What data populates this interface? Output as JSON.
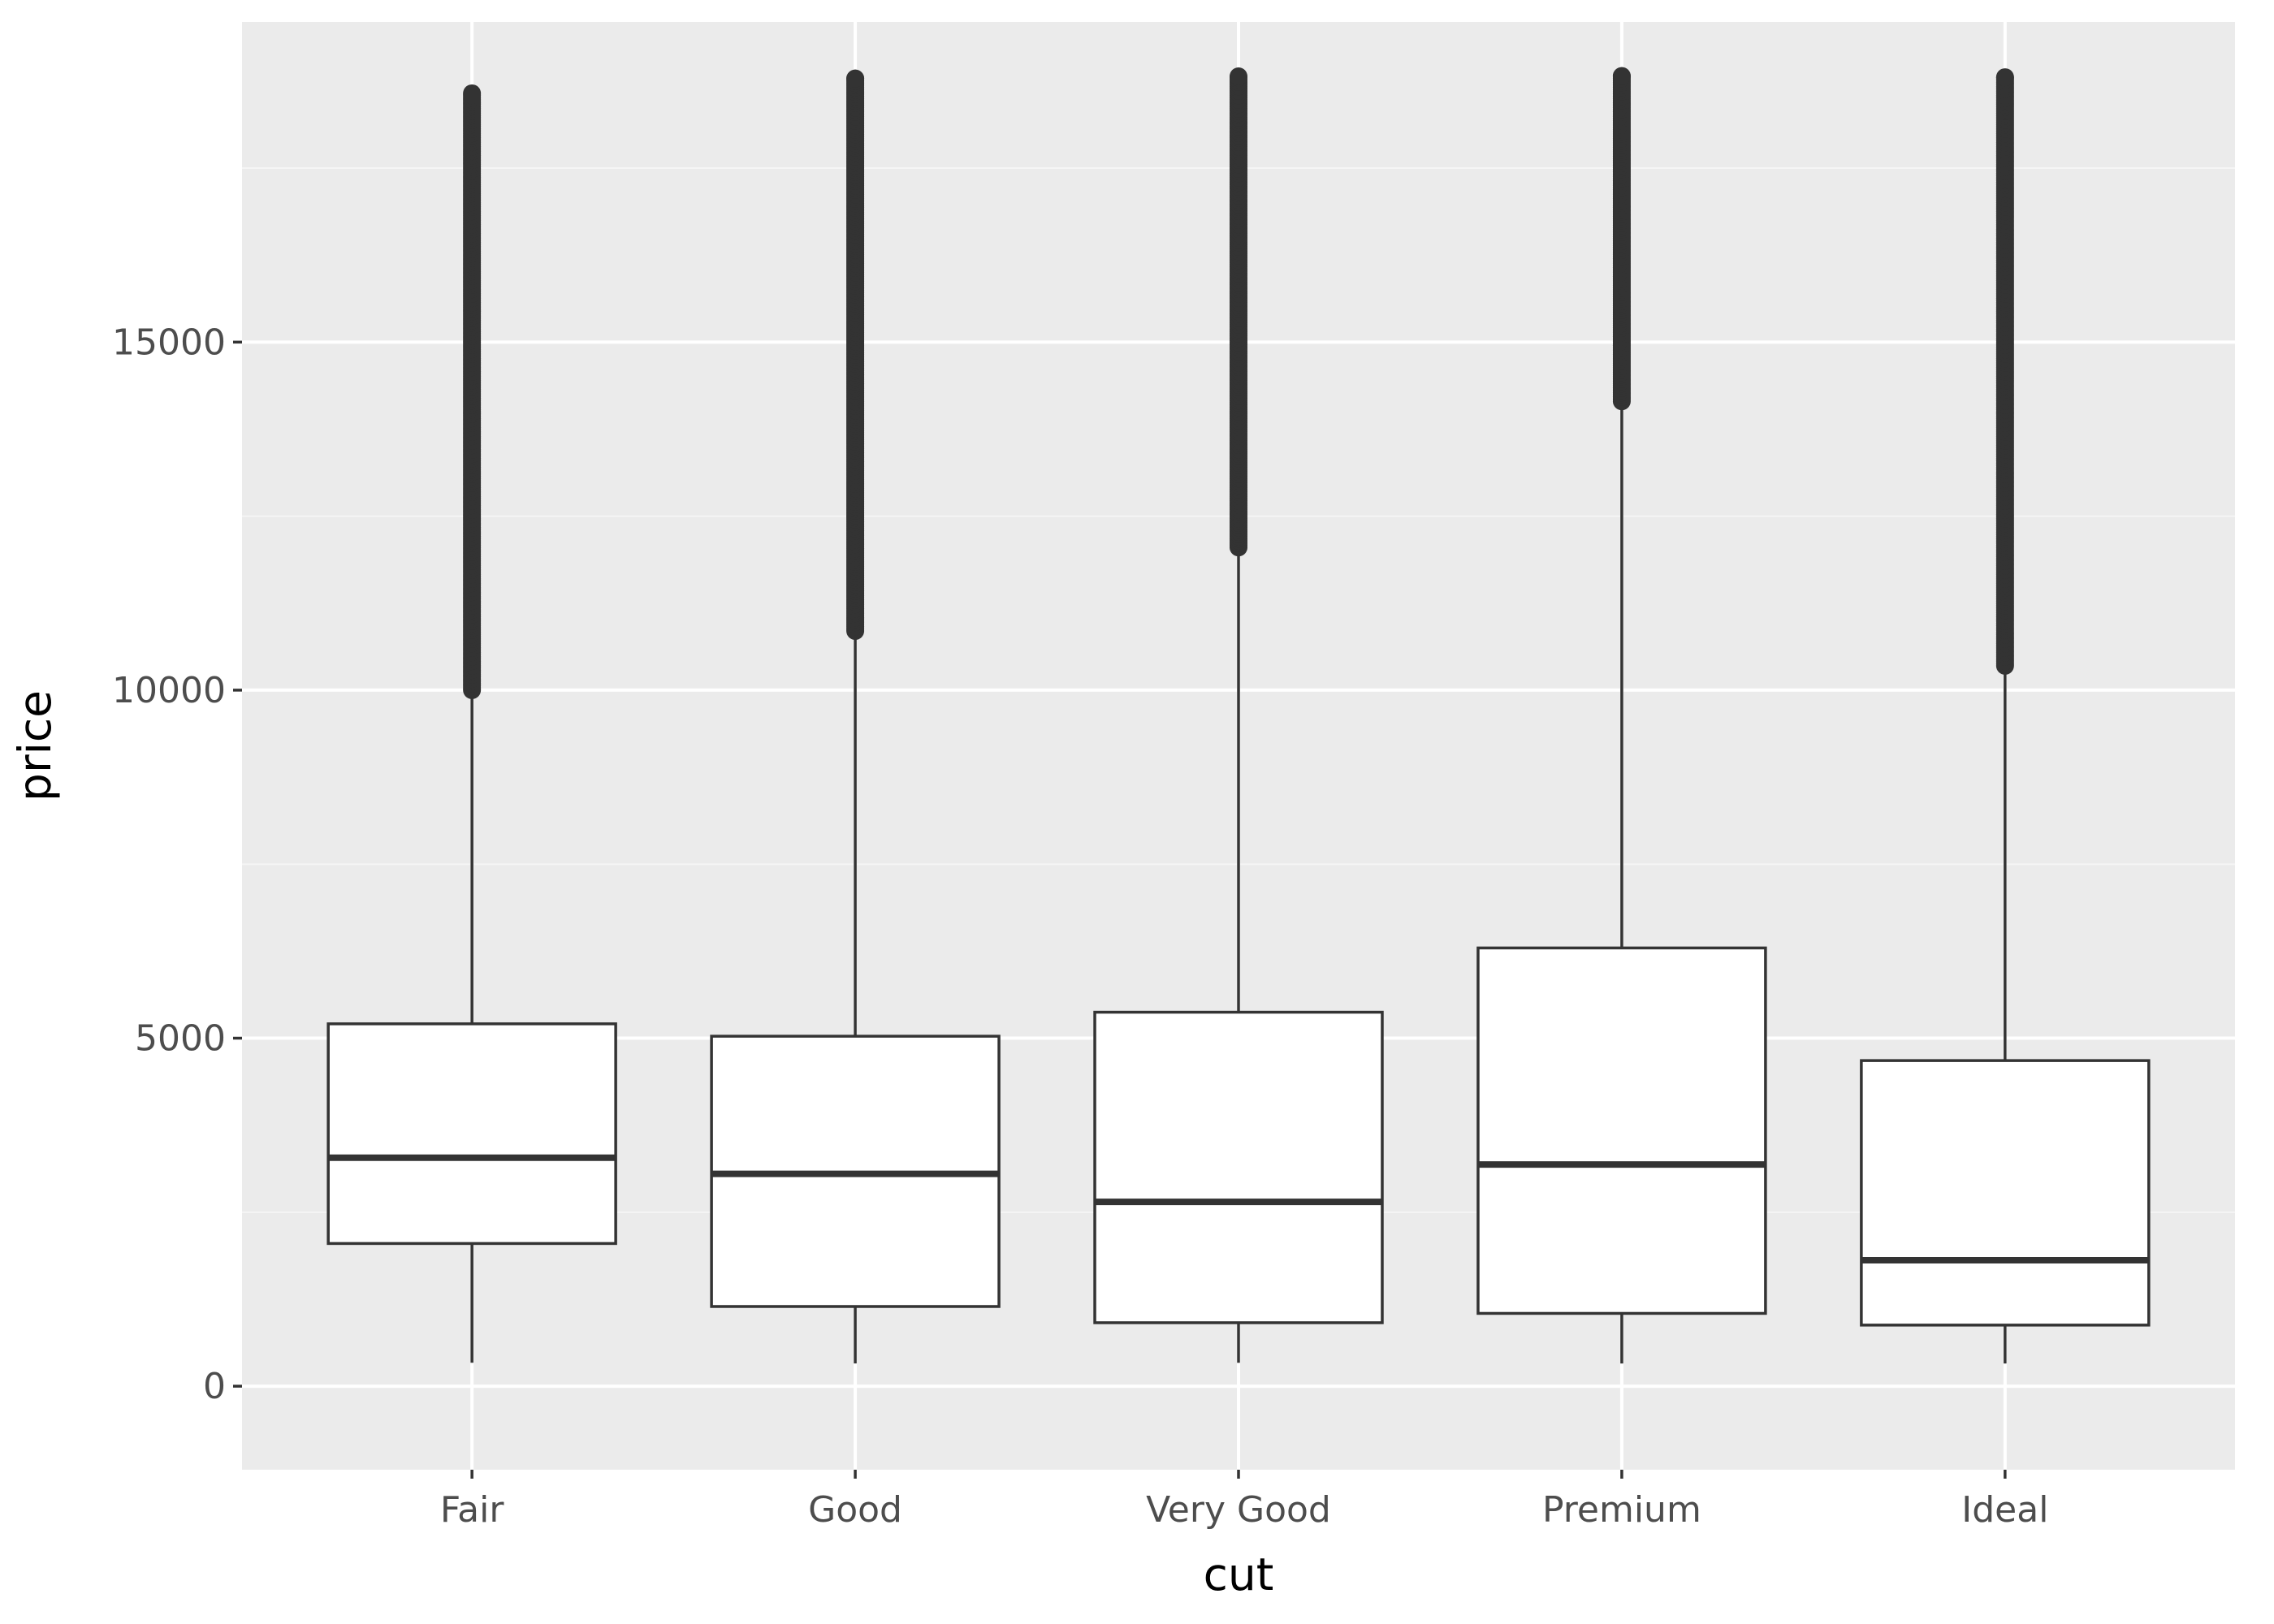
{
  "chart_data": {
    "type": "boxplot",
    "title": "",
    "xlabel": "cut",
    "ylabel": "price",
    "categories": [
      "Fair",
      "Good",
      "Very Good",
      "Premium",
      "Ideal"
    ],
    "ylim": [
      -1200,
      19600
    ],
    "yticks": [
      0,
      5000,
      10000,
      15000
    ],
    "ytick_labels": [
      "0",
      "5000",
      "10000",
      "15000"
    ],
    "grid": true,
    "boxes": [
      {
        "category": "Fair",
        "min": 337,
        "q1": 2050,
        "median": 3282,
        "q3": 5206,
        "whisker_high": 9980,
        "outlier_min": 10000,
        "outlier_max": 18574
      },
      {
        "category": "Good",
        "min": 327,
        "q1": 1145,
        "median": 3050,
        "q3": 5028,
        "whisker_high": 10800,
        "outlier_min": 10850,
        "outlier_max": 18788
      },
      {
        "category": "Very Good",
        "min": 336,
        "q1": 912,
        "median": 2648,
        "q3": 5373,
        "whisker_high": 12000,
        "outlier_min": 12050,
        "outlier_max": 18818
      },
      {
        "category": "Premium",
        "min": 326,
        "q1": 1046,
        "median": 3185,
        "q3": 6296,
        "whisker_high": 14100,
        "outlier_min": 14150,
        "outlier_max": 18823
      },
      {
        "category": "Ideal",
        "min": 326,
        "q1": 878,
        "median": 1810,
        "q3": 4678,
        "whisker_high": 10300,
        "outlier_min": 10350,
        "outlier_max": 18806
      }
    ],
    "colors": {
      "panel_background": "#ebebeb",
      "grid_major": "#ffffff",
      "grid_minor": "#f5f5f5",
      "box_fill": "#ffffff",
      "box_line": "#333333",
      "point": "#333333",
      "tick_text": "#4d4d4d",
      "axis_title": "#000000"
    }
  }
}
